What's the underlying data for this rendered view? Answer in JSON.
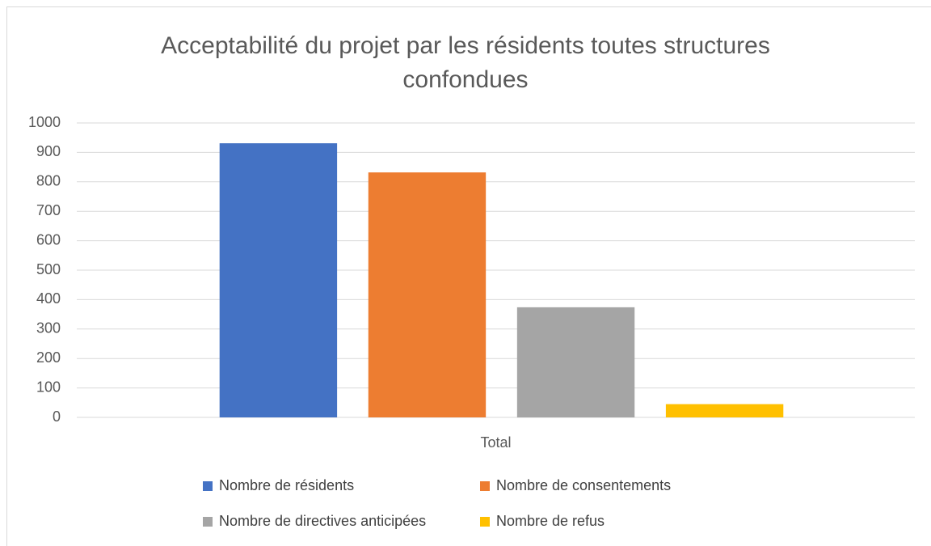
{
  "chart_data": {
    "type": "bar",
    "title": "Acceptabilité du projet par les résidents toutes structures confondues",
    "categories": [
      "Total"
    ],
    "series": [
      {
        "name": "Nombre de résidents",
        "color": "#4472c4",
        "values": [
          931
        ]
      },
      {
        "name": "Nombre de consentements",
        "color": "#ed7d31",
        "values": [
          832
        ]
      },
      {
        "name": "Nombre de directives anticipées",
        "color": "#a5a5a5",
        "values": [
          374
        ]
      },
      {
        "name": "Nombre de refus",
        "color": "#ffc000",
        "values": [
          45
        ]
      }
    ],
    "ylim": [
      0,
      1000
    ],
    "yticks": [
      0,
      100,
      200,
      300,
      400,
      500,
      600,
      700,
      800,
      900,
      1000
    ],
    "grid": true,
    "legend": "bottom"
  }
}
